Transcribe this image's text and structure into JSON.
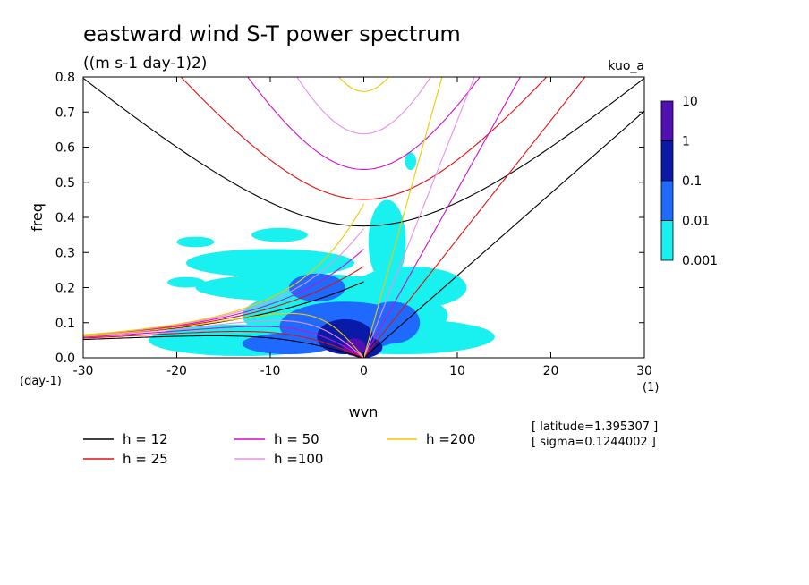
{
  "chart_data": {
    "type": "contour",
    "title": "eastward wind S-T power spectrum",
    "subtitle": "((m s-1 day-1)2)",
    "model_label": "kuo_a",
    "xlabel": "wvn",
    "ylabel": "freq",
    "x_unit": "(1)",
    "y_unit": "(day-1)",
    "xlim": [
      -30,
      30
    ],
    "ylim": [
      0,
      0.8
    ],
    "x_ticks": [
      -30,
      -20,
      -10,
      0,
      10,
      20,
      30
    ],
    "x_tick_labels": [
      "-30",
      "-20",
      "-10",
      "0",
      "10",
      "20",
      "30"
    ],
    "y_ticks": [
      0,
      0.1,
      0.2,
      0.3,
      0.4,
      0.5,
      0.6,
      0.7,
      0.8
    ],
    "y_tick_labels": [
      "0.0",
      "0.1",
      "0.2",
      "0.3",
      "0.4",
      "0.5",
      "0.6",
      "0.7",
      "0.8"
    ],
    "info": [
      "[ latitude=1.395307 ]",
      "[ sigma=0.1244002 ]"
    ],
    "colorbar": {
      "levels": [
        "10",
        "1",
        "0.1",
        "0.01",
        "0.001"
      ],
      "colors": [
        "#5010b4",
        "#0a1aa8",
        "#1e6aff",
        "#19f0f0"
      ]
    },
    "dispersion_curves": [
      {
        "label": "h = 12",
        "h": 12,
        "color": "#000000"
      },
      {
        "label": "h = 25",
        "h": 25,
        "color": "#e01010"
      },
      {
        "label": "h = 50",
        "h": 50,
        "color": "#cc10cc"
      },
      {
        "label": "h =100",
        "h": 100,
        "color": "#e890e8"
      },
      {
        "label": "h =200",
        "h": 200,
        "color": "#f0c800"
      }
    ],
    "power_regions": [
      {
        "level": 0.001,
        "center": [
          -2,
          0.12
        ],
        "half_width": [
          11,
          0.08
        ]
      },
      {
        "level": 0.001,
        "center": [
          -10,
          0.27
        ],
        "half_width": [
          9,
          0.04
        ]
      },
      {
        "level": 0.001,
        "center": [
          -7,
          0.2
        ],
        "half_width": [
          11,
          0.04
        ]
      },
      {
        "level": 0.001,
        "center": [
          5,
          0.2
        ],
        "half_width": [
          6,
          0.06
        ]
      },
      {
        "level": 0.001,
        "center": [
          4,
          0.06
        ],
        "half_width": [
          10,
          0.05
        ]
      },
      {
        "level": 0.001,
        "center": [
          2.5,
          0.33
        ],
        "half_width": [
          2,
          0.12
        ]
      },
      {
        "level": 0.001,
        "center": [
          -13,
          0.05
        ],
        "half_width": [
          10,
          0.045
        ]
      },
      {
        "level": 0.001,
        "center": [
          -18,
          0.33
        ],
        "half_width": [
          2,
          0.015
        ]
      },
      {
        "level": 0.001,
        "center": [
          -9,
          0.35
        ],
        "half_width": [
          3,
          0.02
        ]
      },
      {
        "level": 0.001,
        "center": [
          5,
          0.56
        ],
        "half_width": [
          0.6,
          0.025
        ]
      },
      {
        "level": 0.001,
        "center": [
          -19,
          0.215
        ],
        "half_width": [
          2,
          0.015
        ]
      },
      {
        "level": 0.01,
        "center": [
          -2,
          0.09
        ],
        "half_width": [
          7,
          0.07
        ]
      },
      {
        "level": 0.01,
        "center": [
          -5,
          0.2
        ],
        "half_width": [
          3,
          0.04
        ]
      },
      {
        "level": 0.01,
        "center": [
          -8,
          0.04
        ],
        "half_width": [
          5,
          0.03
        ]
      },
      {
        "level": 0.01,
        "center": [
          3,
          0.1
        ],
        "half_width": [
          3,
          0.06
        ]
      },
      {
        "level": 0.1,
        "center": [
          -2,
          0.06
        ],
        "half_width": [
          3,
          0.05
        ]
      },
      {
        "level": 0.1,
        "center": [
          0,
          0.03
        ],
        "half_width": [
          2,
          0.03
        ]
      },
      {
        "level": 1,
        "center": [
          -1,
          0.03
        ],
        "half_width": [
          1.2,
          0.025
        ]
      }
    ]
  }
}
